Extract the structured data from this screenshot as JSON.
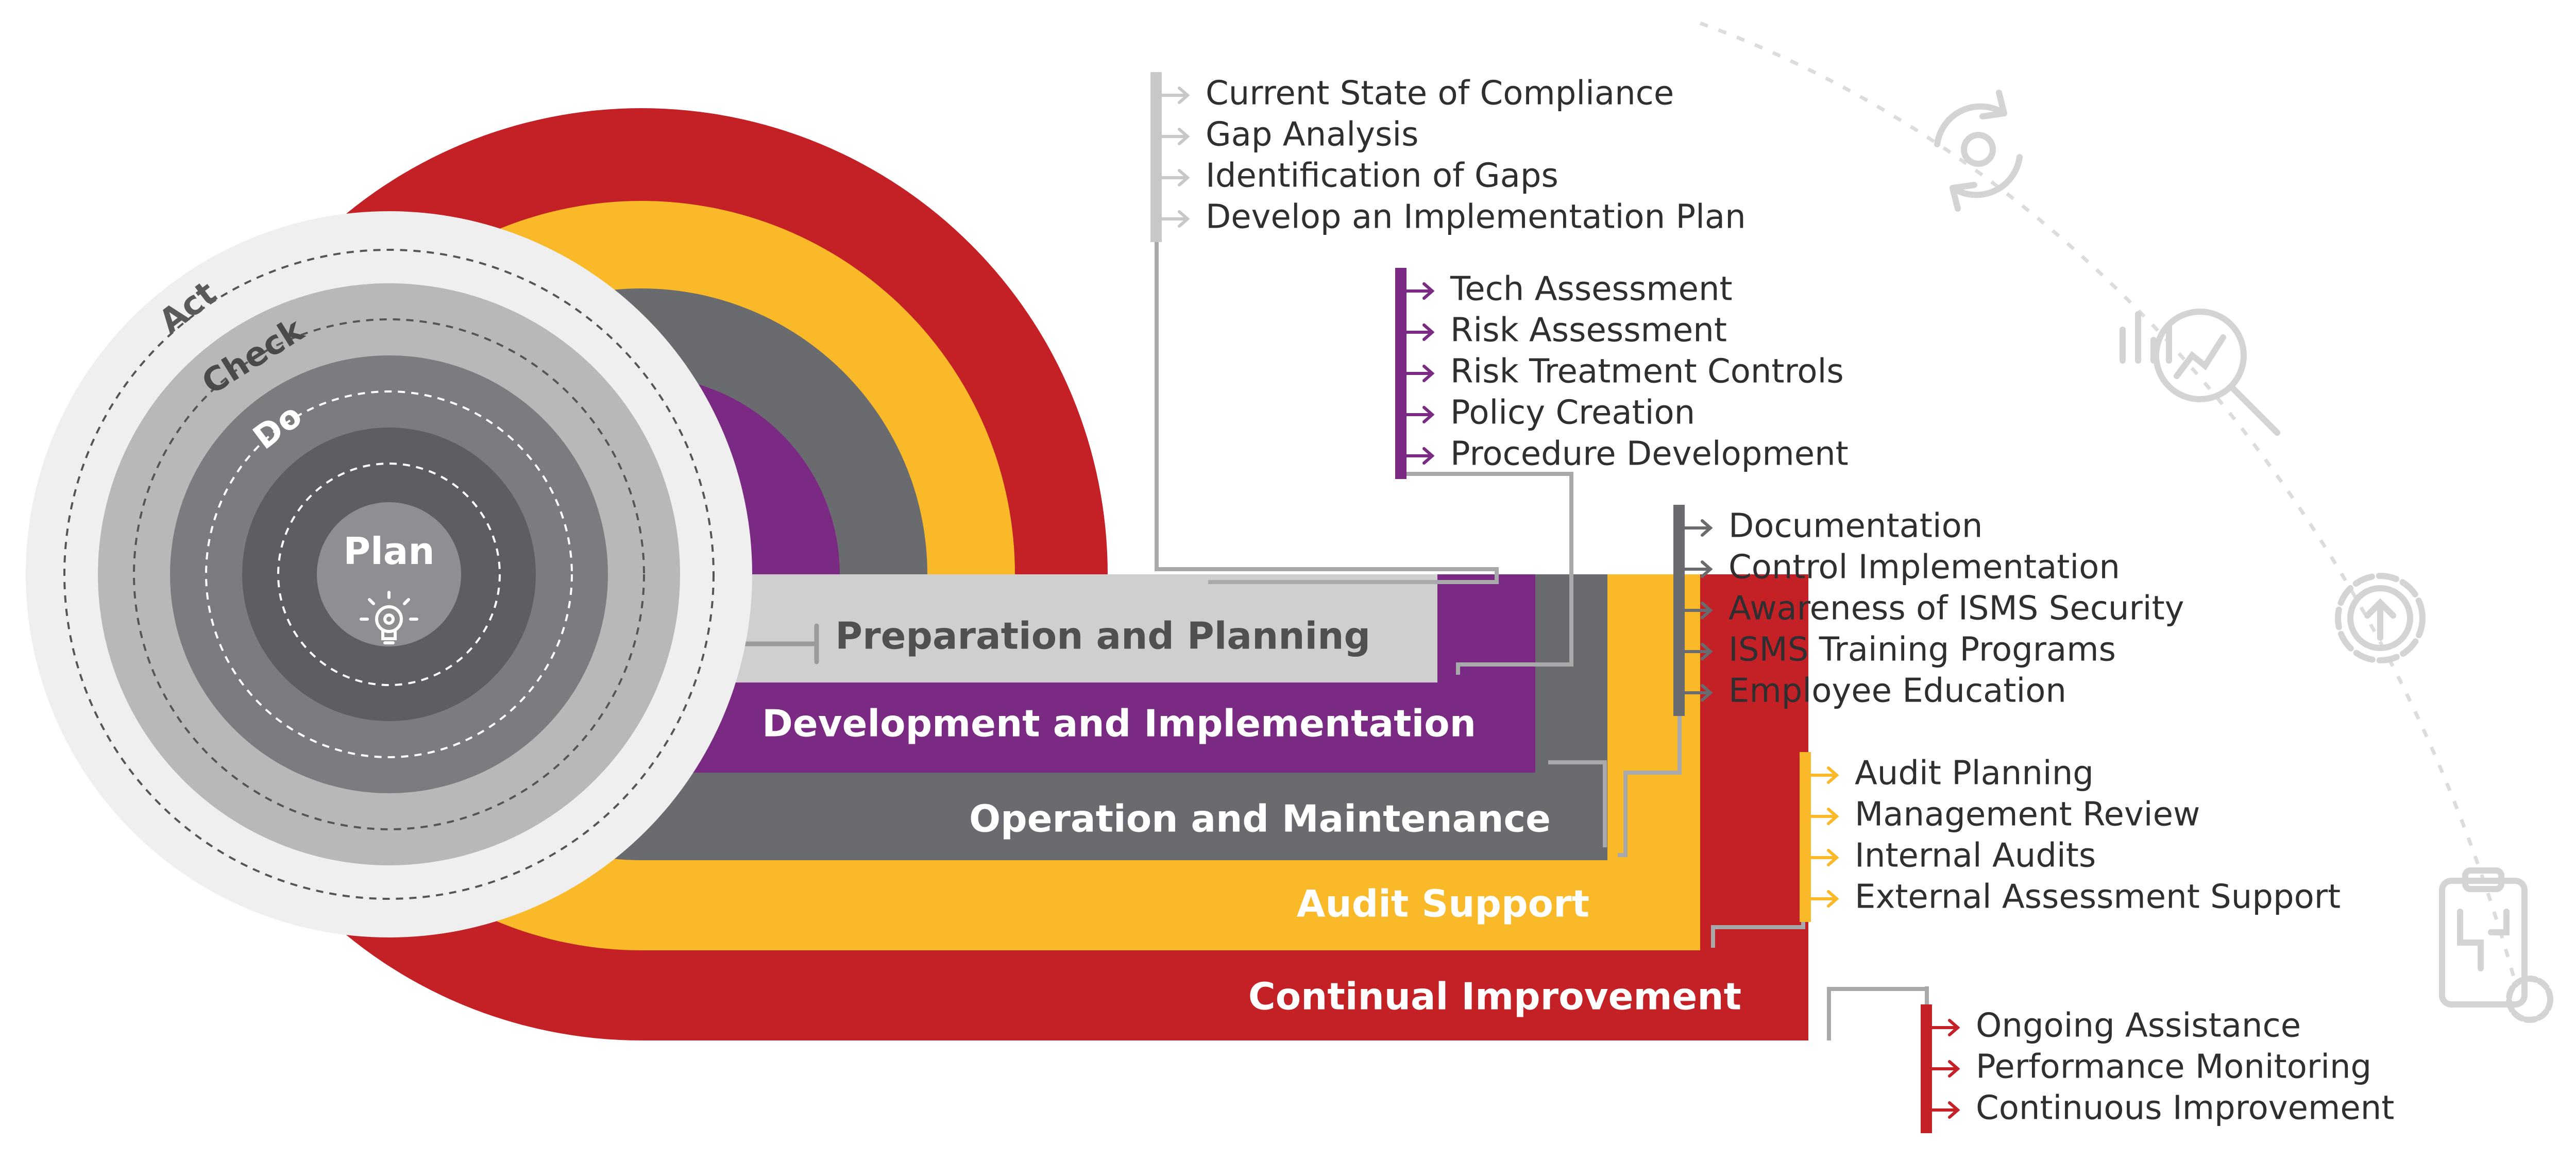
{
  "colors": {
    "red": "#c42127",
    "yellow": "#f9b928",
    "dark_gray": "#6a6b6f",
    "purple": "#7a2a82",
    "light_gray": "#cfcfcf",
    "pale_gray": "#efefef",
    "mid_gray": "#b8b8b8",
    "deep_gray": "#5d5e62",
    "line_gray": "#a9a9ab",
    "text_dark": "#2f2f31",
    "icon_gray": "#d6d6d6"
  },
  "cycle": {
    "act": "Act",
    "check": "Check",
    "do": "Do",
    "plan": "Plan",
    "center_icon": "lightbulb-gear-icon"
  },
  "stages": [
    {
      "label": "Preparation and Planning"
    },
    {
      "label": "Development and Implementation"
    },
    {
      "label": "Operation and Maintenance"
    },
    {
      "label": "Audit Support"
    },
    {
      "label": "Continual Improvement"
    }
  ],
  "task_groups": [
    {
      "items": [
        "Current State of Compliance",
        "Gap Analysis",
        "Identification of Gaps",
        "Develop an Implementation Plan"
      ]
    },
    {
      "items": [
        "Tech Assessment",
        "Risk Assessment",
        "Risk Treatment Controls",
        "Policy Creation",
        "Procedure Development"
      ]
    },
    {
      "items": [
        "Documentation",
        "Control Implementation",
        "Awareness of ISMS Security",
        "ISMS Training Programs",
        "Employee Education"
      ]
    },
    {
      "items": [
        "Audit Planning",
        "Management Review",
        "Internal Audits",
        "External Assessment Support"
      ]
    },
    {
      "items": [
        "Ongoing Assistance",
        "Performance Monitoring",
        "Continuous Improvement"
      ]
    }
  ],
  "side_icons": [
    "refresh-cycle-icon",
    "chart-magnifier-icon",
    "gear-upload-icon",
    "clipboard-gear-icon"
  ]
}
